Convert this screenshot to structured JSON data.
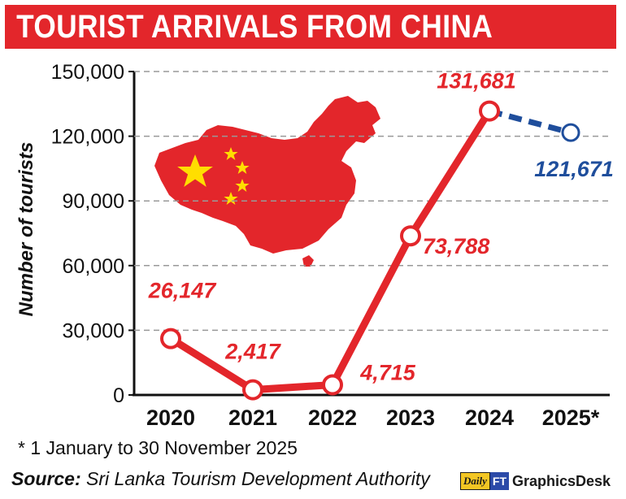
{
  "title": "TOURIST ARRIVALS FROM CHINA",
  "footnote": "* 1 January to 30 November 2025",
  "source": {
    "label": "Source:",
    "text": "Sri Lanka Tourism Development Authority"
  },
  "brand": {
    "daily": "Daily",
    "ft": "FT",
    "graphics_desk": "GraphicsDesk"
  },
  "colors": {
    "accent_red": "#e3262b",
    "estimate_blue": "#1f4e9c",
    "grid": "#999999",
    "map_red": "#e3262b",
    "star_yellow": "#ffde00"
  },
  "decoration": {
    "map_icon": "china-map-flag-icon"
  },
  "chart_data": {
    "type": "line",
    "title": "TOURIST ARRIVALS FROM CHINA",
    "xlabel": "",
    "ylabel": "Number of tourists",
    "ylim": [
      0,
      150000
    ],
    "y_ticks": [
      0,
      30000,
      60000,
      90000,
      120000,
      150000
    ],
    "y_tick_labels": [
      "0",
      "30,000",
      "60,000",
      "90,000",
      "120,000",
      "150,000"
    ],
    "categories": [
      "2020",
      "2021",
      "2022",
      "2023",
      "2024",
      "2025*"
    ],
    "values": [
      26147,
      2417,
      4715,
      73788,
      131681,
      121671
    ],
    "value_labels": [
      "26,147",
      "2,417",
      "4,715",
      "73,788",
      "131,681",
      "121,671"
    ],
    "grid": "horizontal dashed",
    "legend": "none",
    "partial_period_index": 5
  }
}
